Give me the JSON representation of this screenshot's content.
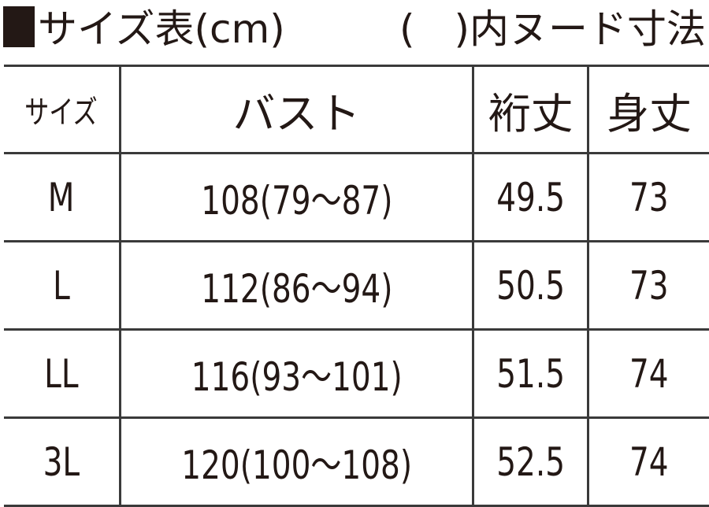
{
  "title": "サイズ表(cm)",
  "note": "(　)内ヌード寸法",
  "headers": [
    "サイズ",
    "バスト",
    "裄丈",
    "身丈"
  ],
  "rows": [
    [
      "M",
      "108(79〜87)",
      "49.5",
      "73"
    ],
    [
      "L",
      "112(86〜94)",
      "50.5",
      "73"
    ],
    [
      "LL",
      "116(93〜101)",
      "51.5",
      "74"
    ],
    [
      "3L",
      "120(100〜108)",
      "52.5",
      "74"
    ]
  ],
  "colors": {
    "text": "#231815",
    "rule": "#3a3a3a"
  }
}
